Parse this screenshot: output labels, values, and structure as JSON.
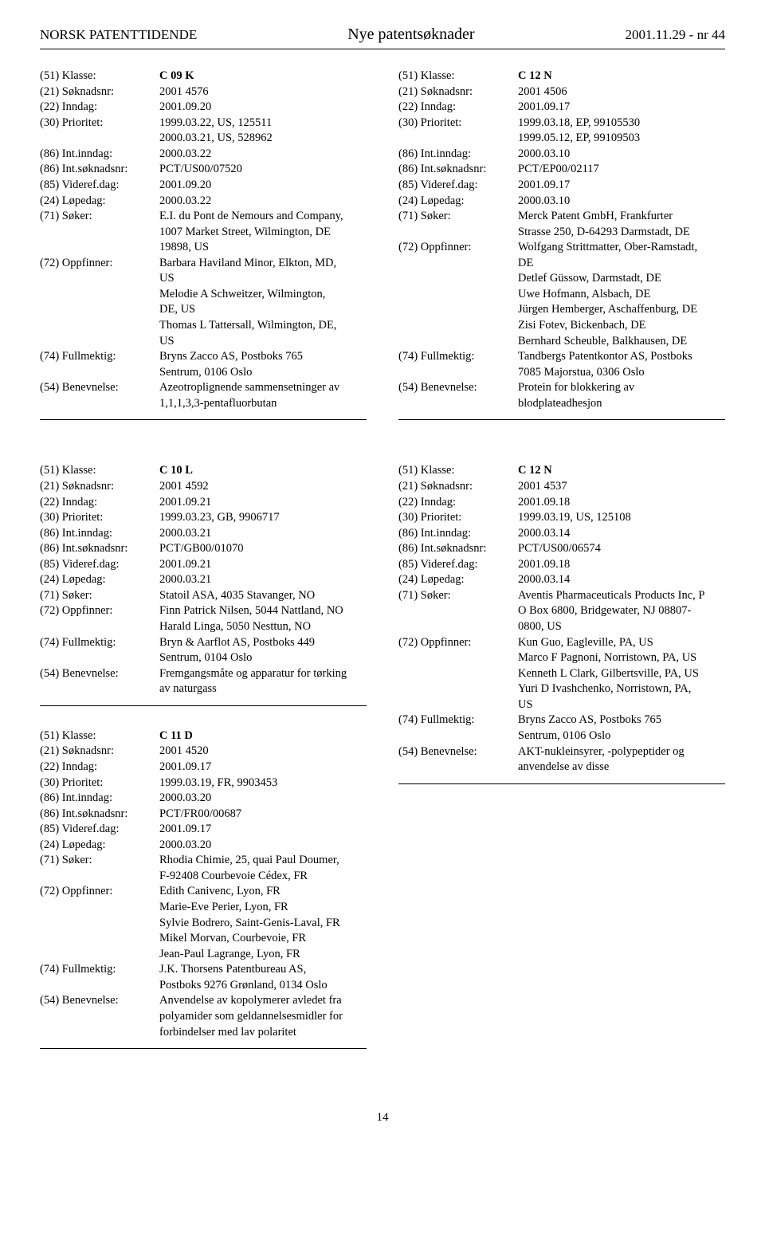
{
  "header": {
    "left": "NORSK PATENTTIDENDE",
    "center": "Nye patentsøknader",
    "right": "2001.11.29 - nr 44"
  },
  "labels": {
    "klasse": "(51) Klasse:",
    "soknadsnr": "(21) Søknadsnr:",
    "inndag": "(22) Inndag:",
    "prioritet": "(30) Prioritet:",
    "intInndag": "(86) Int.inndag:",
    "intSoknadsnr": "(86) Int.søknadsnr:",
    "viderefDag": "(85) Videref.dag:",
    "lopedag": "(24) Løpedag:",
    "soker": "(71) Søker:",
    "oppfinner": "(72) Oppfinner:",
    "fullmektig": "(74) Fullmektig:",
    "benevnelse": "(54) Benevnelse:"
  },
  "entries": {
    "e1": {
      "klasse": "C 09 K",
      "soknadsnr": "2001 4576",
      "inndag": "2001.09.20",
      "prioritet1": "1999.03.22, US, 125511",
      "prioritet2": "2000.03.21, US, 528962",
      "intInndag": "2000.03.22",
      "intSoknadsnr": "PCT/US00/07520",
      "viderefDag": "2001.09.20",
      "lopedag": "2000.03.22",
      "soker1": "E.I. du Pont de Nemours and Company,",
      "soker2": "1007 Market Street, Wilmington, DE",
      "soker3": "19898, US",
      "opp1": "Barbara Haviland Minor, Elkton, MD,",
      "opp2": "US",
      "opp3": "Melodie A Schweitzer, Wilmington,",
      "opp4": "DE, US",
      "opp5": "Thomas L Tattersall, Wilmington, DE,",
      "opp6": "US",
      "full1": "Bryns Zacco AS, Postboks 765",
      "full2": "Sentrum, 0106 Oslo",
      "ben1": "Azeotroplignende sammensetninger av",
      "ben2": "1,1,1,3,3-pentafluorbutan"
    },
    "e2": {
      "klasse": "C 12 N",
      "soknadsnr": "2001 4506",
      "inndag": "2001.09.17",
      "prioritet1": "1999.03.18, EP, 99105530",
      "prioritet2": "1999.05.12, EP, 99109503",
      "intInndag": "2000.03.10",
      "intSoknadsnr": "PCT/EP00/02117",
      "viderefDag": "2001.09.17",
      "lopedag": "2000.03.10",
      "soker1": "Merck Patent GmbH, Frankfurter",
      "soker2": "Strasse 250, D-64293 Darmstadt, DE",
      "opp1": "Wolfgang Strittmatter, Ober-Ramstadt,",
      "opp2": "DE",
      "opp3": "Detlef Güssow, Darmstadt, DE",
      "opp4": "Uwe Hofmann, Alsbach, DE",
      "opp5": "Jürgen Hemberger, Aschaffenburg, DE",
      "opp6": "Zisi Fotev, Bickenbach, DE",
      "opp7": "Bernhard Scheuble, Balkhausen, DE",
      "full1": "Tandbergs Patentkontor AS, Postboks",
      "full2": "7085 Majorstua, 0306 Oslo",
      "ben1": "Protein for blokkering av",
      "ben2": "blodplateadhesjon"
    },
    "e3": {
      "klasse": "C 10 L",
      "soknadsnr": "2001 4592",
      "inndag": "2001.09.21",
      "prioritet1": "1999.03.23, GB, 9906717",
      "intInndag": "2000.03.21",
      "intSoknadsnr": "PCT/GB00/01070",
      "viderefDag": "2001.09.21",
      "lopedag": "2000.03.21",
      "soker1": "Statoil ASA, 4035 Stavanger, NO",
      "opp1": "Finn Patrick Nilsen, 5044 Nattland, NO",
      "opp2": "Harald Linga, 5050 Nesttun, NO",
      "full1": "Bryn & Aarflot AS, Postboks 449",
      "full2": "Sentrum, 0104 Oslo",
      "ben1": "Fremgangsmåte og apparatur for tørking",
      "ben2": "av naturgass"
    },
    "e4": {
      "klasse": "C 11 D",
      "soknadsnr": "2001 4520",
      "inndag": "2001.09.17",
      "prioritet1": "1999.03.19, FR, 9903453",
      "intInndag": "2000.03.20",
      "intSoknadsnr": "PCT/FR00/00687",
      "viderefDag": "2001.09.17",
      "lopedag": "2000.03.20",
      "soker1": "Rhodia Chimie, 25, quai Paul Doumer,",
      "soker2": "F-92408 Courbevoie Cédex, FR",
      "opp1": "Edith Canivenc, Lyon, FR",
      "opp2": "Marie-Eve Perier, Lyon, FR",
      "opp3": "Sylvie Bodrero, Saint-Genis-Laval, FR",
      "opp4": "Mikel Morvan, Courbevoie, FR",
      "opp5": "Jean-Paul Lagrange, Lyon, FR",
      "full1": "J.K. Thorsens Patentbureau AS,",
      "full2": "Postboks 9276 Grønland, 0134 Oslo",
      "ben1": "Anvendelse av kopolymerer avledet fra",
      "ben2": "polyamider som geldannelsesmidler for",
      "ben3": "forbindelser med lav polaritet"
    },
    "e5": {
      "klasse": "C 12 N",
      "soknadsnr": "2001 4537",
      "inndag": "2001.09.18",
      "prioritet1": "1999.03.19, US, 125108",
      "intInndag": "2000.03.14",
      "intSoknadsnr": "PCT/US00/06574",
      "viderefDag": "2001.09.18",
      "lopedag": "2000.03.14",
      "soker1": "Aventis Pharmaceuticals Products Inc, P",
      "soker2": "O Box 6800, Bridgewater, NJ 08807-",
      "soker3": "0800, US",
      "opp1": "Kun Guo, Eagleville, PA, US",
      "opp2": "Marco F Pagnoni, Norristown, PA, US",
      "opp3": "Kenneth L Clark, Gilbertsville, PA, US",
      "opp4": "Yuri D Ivashchenko, Norristown, PA,",
      "opp5": "US",
      "full1": "Bryns Zacco AS, Postboks 765",
      "full2": "Sentrum, 0106 Oslo",
      "ben1": "AKT-nukleinsyrer, -polypeptider og",
      "ben2": "anvendelse av disse"
    }
  },
  "pagenum": "14"
}
